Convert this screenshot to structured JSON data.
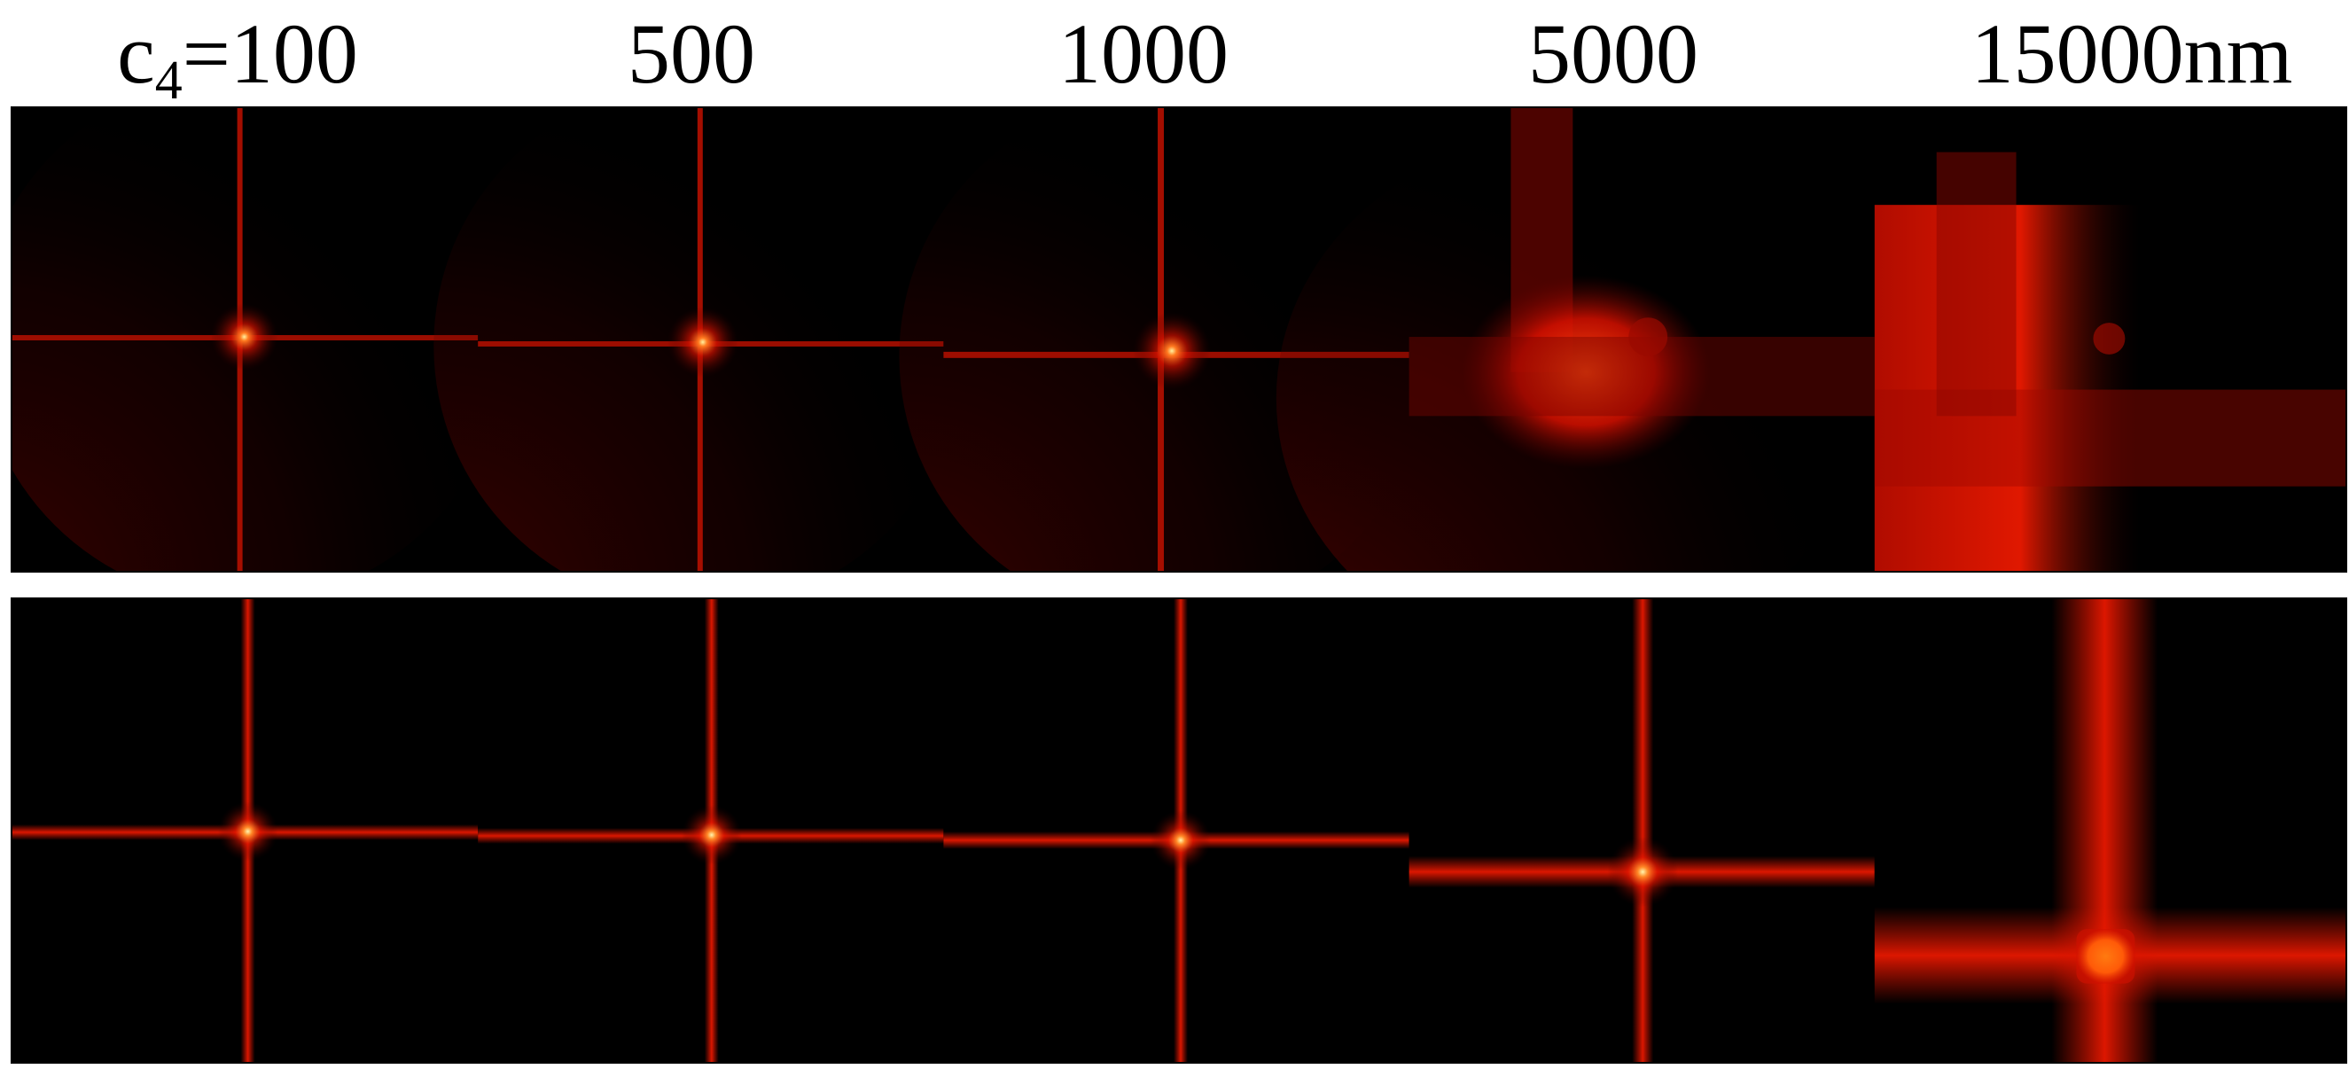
{
  "column_labels": {
    "c4_prefix": "c",
    "c4_subscript": "4",
    "c4_value": "=100",
    "col2": "500",
    "col3": "1000",
    "col4": "5000",
    "col5": "15000nm"
  },
  "colors": {
    "background": "#000000",
    "core": "#fff2a0",
    "bright": "#ff5a14",
    "mid": "#e01000",
    "dim": "#7a0000"
  }
}
